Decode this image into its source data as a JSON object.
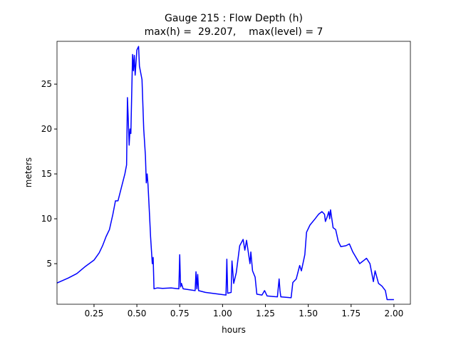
{
  "chart_data": {
    "type": "line",
    "title": "Gauge 215 : Flow Depth (h)",
    "subtitle": "max(h) =  29.207,    max(level) = 7",
    "x_label": "hours",
    "y_label": "meters",
    "xlim": [
      0.034,
      2.096
    ],
    "ylim": [
      0.48,
      29.77
    ],
    "xticks": [
      0.25,
      {
        "value": 0.5,
        "label": "0.50"
      },
      0.75,
      {
        "value": 1.0,
        "label": "1.00"
      },
      1.25,
      {
        "value": 1.5,
        "label": "1.50"
      },
      1.75,
      {
        "value": 2.0,
        "label": "2.00"
      }
    ],
    "yticks": [
      5,
      10,
      15,
      20,
      25
    ],
    "x": [
      0.034,
      0.1,
      0.15,
      0.2,
      0.25,
      0.28,
      0.3,
      0.32,
      0.34,
      0.36,
      0.375,
      0.39,
      0.41,
      0.43,
      0.44,
      0.445,
      0.45,
      0.455,
      0.46,
      0.465,
      0.47,
      0.475,
      0.48,
      0.485,
      0.49,
      0.5,
      0.51,
      0.515,
      0.53,
      0.54,
      0.55,
      0.555,
      0.56,
      0.565,
      0.575,
      0.58,
      0.59,
      0.595,
      0.6,
      0.62,
      0.65,
      0.7,
      0.745,
      0.75,
      0.755,
      0.76,
      0.77,
      0.84,
      0.845,
      0.85,
      0.855,
      0.86,
      0.9,
      1.02,
      1.025,
      1.03,
      1.05,
      1.055,
      1.065,
      1.08,
      1.1,
      1.12,
      1.13,
      1.14,
      1.16,
      1.165,
      1.175,
      1.19,
      1.2,
      1.23,
      1.245,
      1.26,
      1.32,
      1.33,
      1.335,
      1.34,
      1.4,
      1.41,
      1.43,
      1.45,
      1.46,
      1.48,
      1.49,
      1.51,
      1.54,
      1.56,
      1.58,
      1.595,
      1.6,
      1.61,
      1.62,
      1.625,
      1.63,
      1.645,
      1.66,
      1.675,
      1.69,
      1.72,
      1.74,
      1.76,
      1.8,
      1.82,
      1.84,
      1.86,
      1.87,
      1.88,
      1.89,
      1.91,
      1.93,
      1.95,
      1.96,
      2.0
    ],
    "series": [
      {
        "name": "h",
        "color": "#0000ff",
        "values": [
          2.85,
          3.4,
          3.9,
          4.7,
          5.4,
          6.2,
          7.0,
          8.0,
          8.8,
          10.5,
          12.0,
          12.0,
          13.5,
          15.0,
          16,
          23.5,
          21,
          18.2,
          20,
          19.5,
          24,
          28.3,
          26.5,
          28.2,
          26,
          28.8,
          29.2,
          27,
          25.5,
          20,
          17,
          14,
          15,
          13.8,
          10,
          8,
          5,
          5.7,
          2.2,
          2.3,
          2.25,
          2.3,
          2.2,
          6,
          2.4,
          2.8,
          2.2,
          2.0,
          4.1,
          2.2,
          3.8,
          2.0,
          1.8,
          1.5,
          5.5,
          1.7,
          1.8,
          5.3,
          2.8,
          4,
          7.0,
          7.7,
          6.5,
          7.6,
          5.0,
          6.3,
          4.2,
          3.5,
          1.6,
          1.5,
          2.0,
          1.4,
          1.3,
          3.3,
          2.0,
          1.3,
          1.2,
          2.9,
          3.3,
          4.8,
          4.2,
          6.0,
          8.5,
          9.3,
          10,
          10.5,
          10.8,
          10.5,
          9.7,
          10.2,
          10.8,
          10,
          11,
          9.0,
          8.8,
          7.5,
          6.9,
          7.0,
          7.2,
          6.3,
          5.0,
          5.3,
          5.6,
          5.0,
          4.0,
          3.0,
          4.2,
          2.8,
          2.5,
          2.0,
          1.0,
          1.0
        ]
      }
    ]
  }
}
